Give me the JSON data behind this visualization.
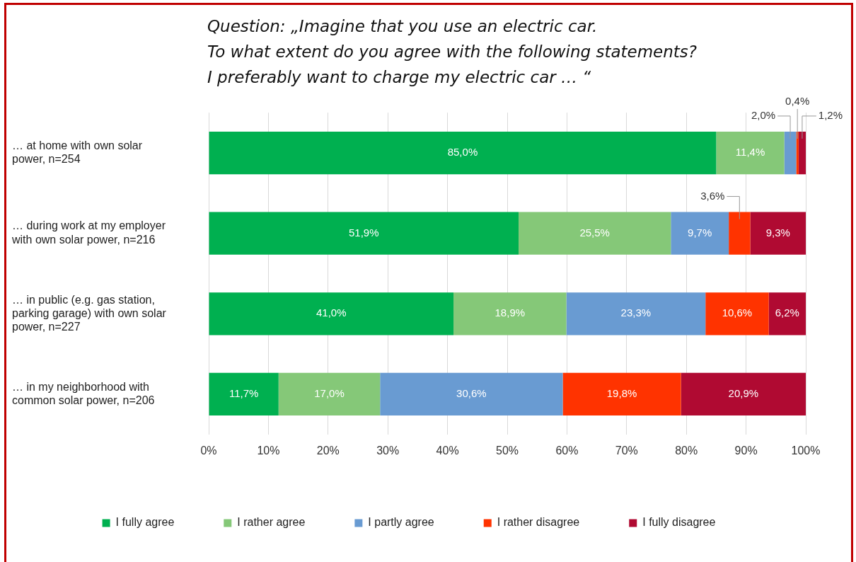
{
  "chart_data": {
    "type": "bar",
    "orientation": "horizontal",
    "stacked": true,
    "title": "Question: „Imagine that you use an electric car.\nTo what extent do you agree with the following statements?\nI preferably want to charge my electric car … “",
    "categories": [
      "… at home with own solar power, n=254",
      "… during work at my employer with own solar power, n=216",
      "… in public (e.g. gas station, parking garage) with own solar power, n=227",
      "… in my neighborhood with common solar power, n=206"
    ],
    "series": [
      {
        "name": "I fully agree",
        "color": "#00b050",
        "values": [
          85.0,
          51.9,
          41.0,
          11.7
        ],
        "value_labels": [
          "85,0%",
          "51,9%",
          "41,0%",
          "11,7%"
        ]
      },
      {
        "name": "I rather agree",
        "color": "#85c878",
        "values": [
          11.4,
          25.5,
          18.9,
          17.0
        ],
        "value_labels": [
          "11,4%",
          "25,5%",
          "18,9%",
          "17,0%"
        ]
      },
      {
        "name": "I partly agree",
        "color": "#699bd2",
        "values": [
          2.0,
          9.7,
          23.3,
          30.6
        ],
        "value_labels": [
          "2,0%",
          "9,7%",
          "23,3%",
          "30,6%"
        ]
      },
      {
        "name": "I rather disagree",
        "color": "#ff3300",
        "values": [
          0.4,
          3.6,
          10.6,
          19.8
        ],
        "value_labels": [
          "0,4%",
          "3,6%",
          "10,6%",
          "19,8%"
        ]
      },
      {
        "name": "I fully disagree",
        "color": "#b00a32",
        "values": [
          1.2,
          9.3,
          6.2,
          20.9
        ],
        "value_labels": [
          "1,2%",
          "9,3%",
          "6,2%",
          "20,9%"
        ]
      }
    ],
    "xlim": [
      0,
      100
    ],
    "xticks": [
      {
        "value": 0,
        "label": "0%"
      },
      {
        "value": 10,
        "label": "10%"
      },
      {
        "value": 20,
        "label": "20%"
      },
      {
        "value": 30,
        "label": "30%"
      },
      {
        "value": 40,
        "label": "40%"
      },
      {
        "value": 50,
        "label": "50%"
      },
      {
        "value": 60,
        "label": "60%"
      },
      {
        "value": 70,
        "label": "70%"
      },
      {
        "value": 80,
        "label": "80%"
      },
      {
        "value": 90,
        "label": "90%"
      },
      {
        "value": 100,
        "label": "100%"
      }
    ],
    "grid": "x",
    "legend": "bottom"
  }
}
